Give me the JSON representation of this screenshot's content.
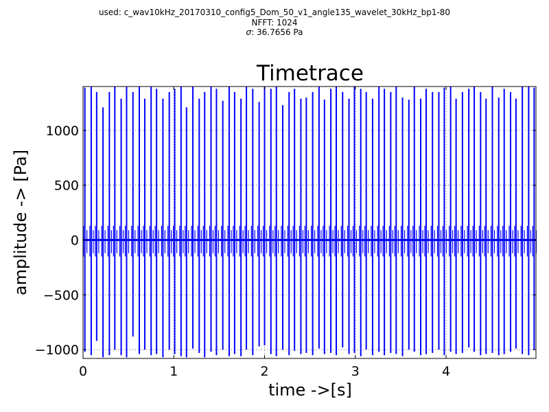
{
  "header": {
    "used_line": "used: c_wav10kHz_20170310_config5_Dom_50_v1_angle135_wavelet_30kHz_bp1-80",
    "nfft_line": "NFFT: 1024",
    "sigma_line": "σ: 36.7656 Pa"
  },
  "chart_data": {
    "type": "line",
    "title": "Timetrace",
    "xlabel": "time ->[s]",
    "ylabel": "amplitude -> [Pa]",
    "xlim": [
      0,
      4.99
    ],
    "ylim": [
      -1080,
      1400
    ],
    "xticks": [
      0,
      1,
      2,
      3,
      4
    ],
    "xtick_labels": [
      "0",
      "1",
      "2",
      "3",
      "4"
    ],
    "yticks": [
      -1000,
      -500,
      0,
      500,
      1000
    ],
    "ytick_labels": [
      "−1000",
      "−500",
      "0",
      "500",
      "1000"
    ],
    "grid": true,
    "grid_style": "dotted",
    "line_color": "#0000ff",
    "series": [
      {
        "x": [
          0.02,
          0.09,
          0.15,
          0.22,
          0.29,
          0.35,
          0.42,
          0.48,
          0.55,
          0.62,
          0.68,
          0.75,
          0.81,
          0.88,
          0.95,
          1.01,
          1.08,
          1.14,
          1.21,
          1.28,
          1.34,
          1.41,
          1.47,
          1.54,
          1.61,
          1.67,
          1.74,
          1.8,
          1.87,
          1.94,
          2.0,
          2.07,
          2.13,
          2.2,
          2.27,
          2.33,
          2.4,
          2.46,
          2.53,
          2.6,
          2.66,
          2.73,
          2.79,
          2.86,
          2.93,
          2.99,
          3.06,
          3.12,
          3.19,
          3.26,
          3.32,
          3.39,
          3.45,
          3.52,
          3.59,
          3.65,
          3.72,
          3.78,
          3.85,
          3.92,
          3.98,
          4.05,
          4.11,
          4.18,
          4.25,
          4.31,
          4.38,
          4.44,
          4.51,
          4.58,
          4.64,
          4.71,
          4.77,
          4.84,
          4.91,
          4.97
        ],
        "peak": [
          1390,
          1400,
          1350,
          1210,
          1350,
          1400,
          1290,
          1400,
          1350,
          1400,
          1290,
          1400,
          1380,
          1290,
          1350,
          1380,
          1400,
          1210,
          1400,
          1290,
          1350,
          1400,
          1380,
          1270,
          1400,
          1350,
          1290,
          1400,
          1380,
          1260,
          1400,
          1380,
          1400,
          1230,
          1350,
          1380,
          1290,
          1300,
          1350,
          1400,
          1280,
          1380,
          1400,
          1350,
          1290,
          1400,
          1380,
          1350,
          1290,
          1400,
          1380,
          1350,
          1400,
          1300,
          1280,
          1400,
          1290,
          1380,
          1350,
          1350,
          1390,
          1400,
          1290,
          1350,
          1380,
          1400,
          1350,
          1290,
          1400,
          1300,
          1380,
          1350,
          1290,
          1400,
          1400,
          1390
        ],
        "trough": [
          -1020,
          -1050,
          -920,
          -1070,
          -1050,
          -1000,
          -1050,
          -1070,
          -880,
          -1040,
          -1000,
          -1050,
          -1040,
          -1070,
          -1000,
          -1040,
          -1060,
          -1070,
          -990,
          -1030,
          -1070,
          -1020,
          -1050,
          -1000,
          -1060,
          -1040,
          -1060,
          -1000,
          -1050,
          -970,
          -960,
          -1040,
          -1060,
          -1000,
          -1050,
          -1010,
          -1040,
          -1030,
          -1050,
          -990,
          -1040,
          -1030,
          -1050,
          -980,
          -1040,
          -1030,
          -1060,
          -1000,
          -1050,
          -1020,
          -1050,
          -1030,
          -1040,
          -1060,
          -1000,
          -1020,
          -1050,
          -1040,
          -1030,
          -1000,
          -1050,
          -1020,
          -1040,
          -1030,
          -980,
          -1020,
          -1050,
          -1040,
          -1030,
          -1050,
          -1040,
          -1020,
          -990,
          -1040,
          -1050,
          -1000
        ]
      }
    ]
  }
}
